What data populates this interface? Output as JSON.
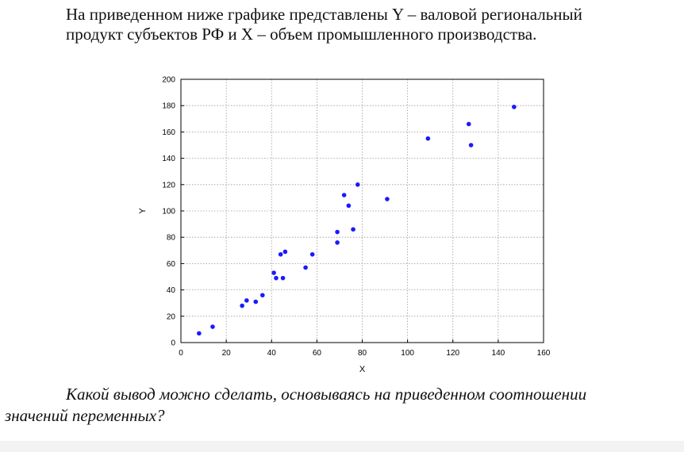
{
  "intro": {
    "line1": "На приведенном ниже графике представлены Y – валовой региональный",
    "line2": "продукт субъектов РФ и X – объем промышленного производства."
  },
  "question": {
    "line1": "Какой вывод можно сделать, основываясь на приведенном соотношении",
    "line2": "значений переменных?"
  },
  "chart_data": {
    "type": "scatter",
    "xlabel": "X",
    "ylabel": "Y",
    "xlim": [
      0,
      160
    ],
    "ylim": [
      0,
      200
    ],
    "xticks": [
      0,
      20,
      40,
      60,
      80,
      100,
      120,
      140,
      160
    ],
    "yticks": [
      0,
      20,
      40,
      60,
      80,
      100,
      120,
      140,
      160,
      180,
      200
    ],
    "grid": true,
    "point_color": "#1a1aff",
    "points": [
      {
        "x": 8,
        "y": 7
      },
      {
        "x": 14,
        "y": 12
      },
      {
        "x": 27,
        "y": 28
      },
      {
        "x": 29,
        "y": 32
      },
      {
        "x": 33,
        "y": 31
      },
      {
        "x": 36,
        "y": 36
      },
      {
        "x": 41,
        "y": 53
      },
      {
        "x": 42,
        "y": 49
      },
      {
        "x": 44,
        "y": 67
      },
      {
        "x": 45,
        "y": 49
      },
      {
        "x": 46,
        "y": 69
      },
      {
        "x": 55,
        "y": 57
      },
      {
        "x": 58,
        "y": 67
      },
      {
        "x": 69,
        "y": 84
      },
      {
        "x": 69,
        "y": 76
      },
      {
        "x": 72,
        "y": 112
      },
      {
        "x": 74,
        "y": 104
      },
      {
        "x": 76,
        "y": 86
      },
      {
        "x": 78,
        "y": 120
      },
      {
        "x": 91,
        "y": 109
      },
      {
        "x": 109,
        "y": 155
      },
      {
        "x": 127,
        "y": 166
      },
      {
        "x": 128,
        "y": 150
      },
      {
        "x": 147,
        "y": 179
      }
    ]
  }
}
